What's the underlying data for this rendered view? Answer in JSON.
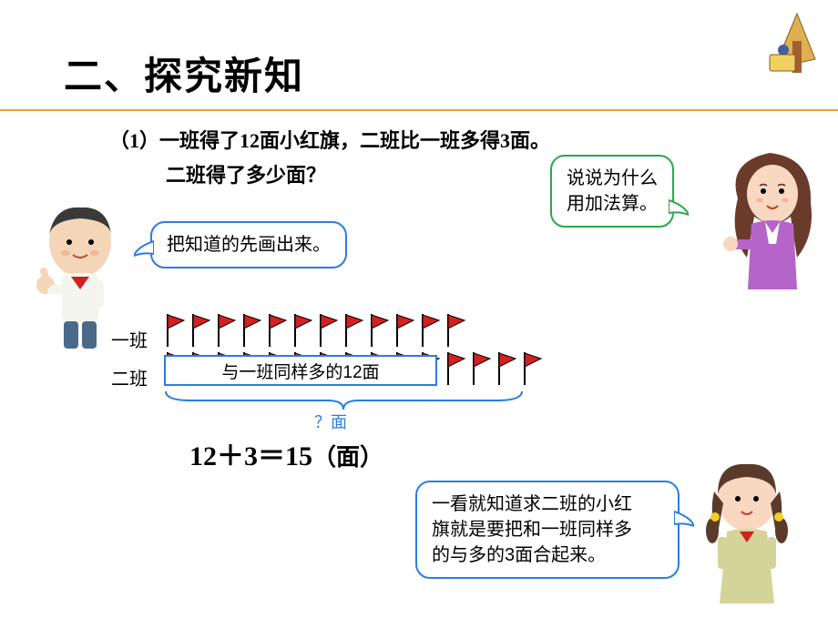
{
  "header": {
    "title": "二、探究新知",
    "line_color": "#e8a030"
  },
  "problem": {
    "prefix": "（1）",
    "line1": "一班得了12面小红旗，二班比一班多得3面。",
    "line2": "二班得了多少面？"
  },
  "bubbles": {
    "b1": {
      "text": "把知道的先画出来。",
      "color": "#2b7de0"
    },
    "b2": {
      "text_l1": "说说为什么",
      "text_l2": "用加法算。",
      "color": "#2aa84a"
    },
    "b3": {
      "text_l1": "一看就知道求二班的小红",
      "text_l2": "旗就是要把和一班同样多",
      "text_l3": "的与多的3面合起来。",
      "color": "#2b7de0"
    }
  },
  "rows": {
    "label1": "一班",
    "label2": "二班",
    "count1": 12,
    "count2_extra": 3,
    "same_text": "与一班同样多的12面",
    "q_text": "？面",
    "flag_color": "#d32020",
    "flag_stroke": "#000000",
    "pole_color": "#000000"
  },
  "equation": {
    "lhs": "12＋3",
    "eq": "＝",
    "rhs": "15",
    "unit": "（面）"
  },
  "colors": {
    "blue": "#2b7de0",
    "green": "#2aa84a",
    "text": "#000000",
    "bg": "#ffffff"
  }
}
